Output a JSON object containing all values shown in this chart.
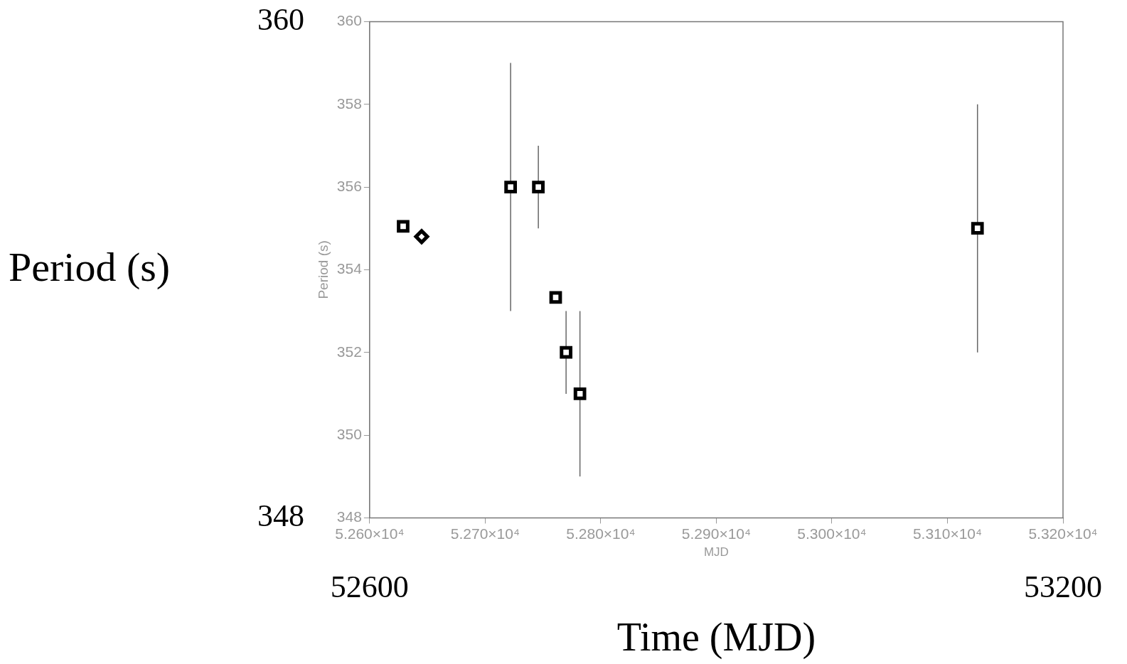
{
  "chart_data": {
    "type": "scatter",
    "xlabel": "MJD",
    "ylabel": "Period (s)",
    "x2label": "Time (MJD)",
    "y2label": "Period (s)",
    "xlim": [
      52600,
      53200
    ],
    "xticks": [
      {
        "value": 52600,
        "label": "5.260×10⁴"
      },
      {
        "value": 52700,
        "label": "5.270×10⁴"
      },
      {
        "value": 52800,
        "label": "5.280×10⁴"
      },
      {
        "value": 52900,
        "label": "5.290×10⁴"
      },
      {
        "value": 53000,
        "label": "5.300×10⁴"
      },
      {
        "value": 53100,
        "label": "5.310×10⁴"
      },
      {
        "value": 53200,
        "label": "5.320×10⁴"
      }
    ],
    "ylim": [
      348,
      360
    ],
    "yticks": [
      348,
      350,
      352,
      354,
      356,
      358,
      360
    ],
    "x2lim": [
      52600,
      53200
    ],
    "x2ticks": [
      52600,
      53200
    ],
    "y2lim": [
      348,
      360
    ],
    "y2ticks": [
      348,
      360
    ],
    "grid": false,
    "legend": false,
    "series": [
      {
        "color": "#000000",
        "marker": "square",
        "x": [
          52629,
          52722,
          52746,
          52761,
          52770,
          52782,
          53126
        ],
        "values": [
          355.05,
          356,
          356,
          353.33,
          352,
          351,
          355
        ],
        "errors": [
          null,
          3,
          1,
          null,
          1,
          2,
          3
        ]
      },
      {
        "color": "#000000",
        "marker": "diamond",
        "x": [
          52645
        ],
        "values": [
          354.8
        ]
      }
    ]
  }
}
